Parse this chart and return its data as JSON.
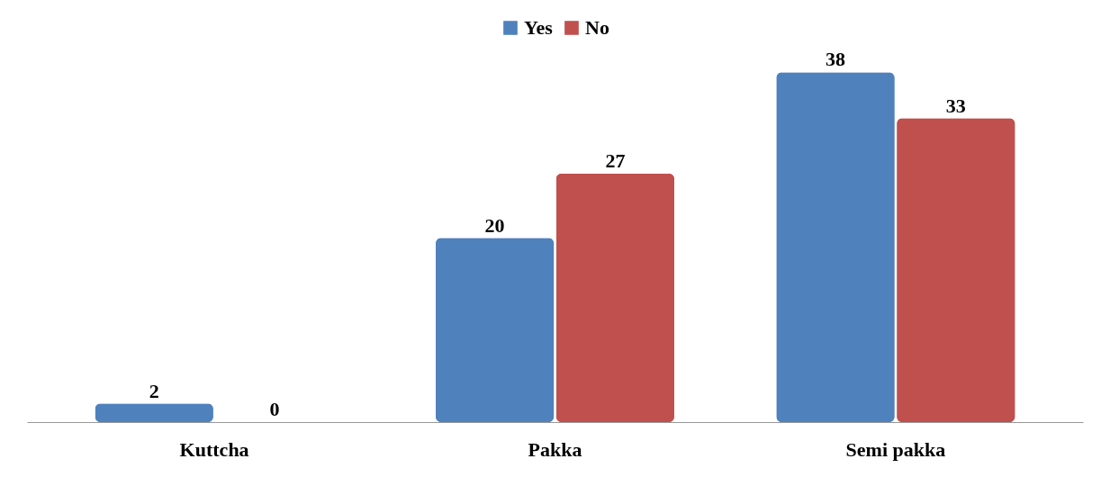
{
  "chart_data": {
    "type": "bar",
    "categories": [
      "Kuttcha",
      "Pakka",
      "Semi pakka"
    ],
    "series": [
      {
        "name": "Yes",
        "color": "#4f81bd",
        "values": [
          2,
          20,
          38
        ]
      },
      {
        "name": "No",
        "color": "#c0504d",
        "values": [
          0,
          27,
          33
        ]
      }
    ],
    "data_labels": true,
    "legend": "top"
  }
}
